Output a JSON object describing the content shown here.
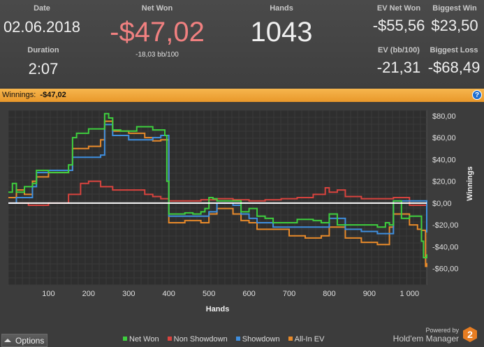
{
  "stats": {
    "date_label": "Date",
    "date_value": "02.06.2018",
    "duration_label": "Duration",
    "duration_value": "2:07",
    "netwon_label": "Net Won",
    "netwon_value": "-$47,02",
    "netwon_sub": "-18,03 bb/100",
    "hands_label": "Hands",
    "hands_value": "1043",
    "ev_netwon_label": "EV Net Won",
    "ev_netwon_value": "-$55,56",
    "ev_bb_label": "EV (bb/100)",
    "ev_bb_value": "-21,31",
    "biggest_win_label": "Biggest Win",
    "biggest_win_value": "$23,50",
    "biggest_loss_label": "Biggest Loss",
    "biggest_loss_value": "-$68,49"
  },
  "winnings_bar": {
    "label": "Winnings:",
    "value": "-$47,02",
    "help": "?"
  },
  "bottom": {
    "options_label": "Options",
    "powered_by": "Powered by",
    "brand": "Hold'em Manager",
    "brand_badge": "2"
  },
  "colors": {
    "net_won": "#3ecf3e",
    "non_showdown": "#d9433e",
    "showdown": "#3f8fdf",
    "all_in_ev": "#e88a2a",
    "net_won_text": "#f08080",
    "accent": "#f0a83c"
  },
  "chart_data": {
    "type": "line",
    "xlabel": "Hands",
    "ylabel": "Winnings",
    "xlim": [
      0,
      1043
    ],
    "ylim": [
      -75,
      85
    ],
    "x_ticks": [
      100,
      200,
      300,
      400,
      500,
      600,
      700,
      800,
      900,
      1000
    ],
    "x_tick_labels": [
      "100",
      "200",
      "300",
      "400",
      "500",
      "600",
      "700",
      "800",
      "900",
      "1 000"
    ],
    "y_ticks": [
      80,
      60,
      40,
      20,
      0,
      -20,
      -40,
      -60
    ],
    "y_tick_labels": [
      "$80,00",
      "$60,00",
      "$40,00",
      "$20,00",
      "$0,00",
      "-$20,00",
      "-$40,00",
      "-$60,00"
    ],
    "grid": true,
    "legend_position": "bottom",
    "series": [
      {
        "name": "Net Won",
        "color": "#3ecf3e",
        "x": [
          0,
          10,
          20,
          40,
          60,
          70,
          100,
          150,
          160,
          170,
          200,
          230,
          240,
          250,
          260,
          280,
          300,
          320,
          340,
          360,
          380,
          390,
          395,
          400,
          420,
          440,
          460,
          480,
          490,
          500,
          510,
          520,
          540,
          560,
          580,
          600,
          620,
          640,
          660,
          680,
          700,
          720,
          740,
          760,
          780,
          800,
          820,
          840,
          860,
          880,
          900,
          920,
          940,
          950,
          960,
          980,
          1000,
          1020,
          1030,
          1035,
          1043
        ],
        "y": [
          10,
          18,
          10,
          15,
          18,
          30,
          28,
          35,
          60,
          64,
          68,
          68,
          82,
          78,
          67,
          66,
          66,
          70,
          70,
          67,
          67,
          62,
          20,
          -10,
          -10,
          -9,
          -10,
          -8,
          -5,
          5,
          4,
          2,
          2,
          2,
          -8,
          -5,
          -12,
          -14,
          -18,
          -18,
          -18,
          -15,
          -15,
          -16,
          -18,
          -10,
          -20,
          -20,
          -20,
          -20,
          -20,
          -22,
          -18,
          -20,
          2,
          -14,
          -12,
          -12,
          -35,
          -50,
          -47
        ]
      },
      {
        "name": "Non Showdown",
        "color": "#d9433e",
        "x": [
          0,
          50,
          100,
          150,
          180,
          200,
          230,
          260,
          300,
          340,
          360,
          380,
          400,
          440,
          480,
          520,
          560,
          600,
          640,
          680,
          720,
          760,
          790,
          800,
          820,
          840,
          880,
          920,
          960,
          1000,
          1043
        ],
        "y": [
          0,
          -2,
          0,
          8,
          18,
          20,
          15,
          12,
          12,
          8,
          6,
          4,
          2,
          2,
          3,
          4,
          3,
          2,
          3,
          4,
          5,
          8,
          14,
          10,
          12,
          6,
          4,
          4,
          5,
          -2,
          -20
        ]
      },
      {
        "name": "Showdown",
        "color": "#3f8fdf",
        "x": [
          0,
          20,
          40,
          60,
          70,
          100,
          150,
          160,
          200,
          230,
          240,
          260,
          300,
          340,
          360,
          380,
          395,
          400,
          440,
          480,
          500,
          520,
          560,
          580,
          600,
          620,
          660,
          700,
          760,
          800,
          840,
          880,
          920,
          940,
          960,
          1000,
          1020,
          1030,
          1043
        ],
        "y": [
          0,
          5,
          5,
          15,
          28,
          30,
          30,
          42,
          42,
          44,
          72,
          62,
          58,
          58,
          60,
          62,
          62,
          -12,
          -12,
          -12,
          -8,
          0,
          -2,
          -10,
          -14,
          -18,
          -22,
          -22,
          -22,
          -14,
          -24,
          -26,
          -28,
          -28,
          2,
          2,
          2,
          2,
          -27
        ]
      },
      {
        "name": "All-In EV",
        "color": "#e88a2a",
        "x": [
          0,
          20,
          40,
          60,
          70,
          100,
          150,
          160,
          200,
          230,
          240,
          260,
          300,
          340,
          360,
          380,
          395,
          400,
          440,
          480,
          500,
          520,
          560,
          580,
          600,
          620,
          660,
          700,
          740,
          780,
          800,
          840,
          880,
          920,
          940,
          950,
          960,
          1000,
          1020,
          1030,
          1040,
          1043
        ],
        "y": [
          5,
          12,
          8,
          20,
          24,
          28,
          30,
          50,
          52,
          58,
          75,
          66,
          64,
          60,
          57,
          58,
          58,
          -18,
          -16,
          -18,
          -10,
          -5,
          -10,
          -16,
          -18,
          -24,
          -24,
          -30,
          -32,
          -30,
          -22,
          -32,
          -36,
          -38,
          -38,
          -22,
          -10,
          -20,
          -24,
          -25,
          -58,
          -55
        ]
      }
    ]
  }
}
